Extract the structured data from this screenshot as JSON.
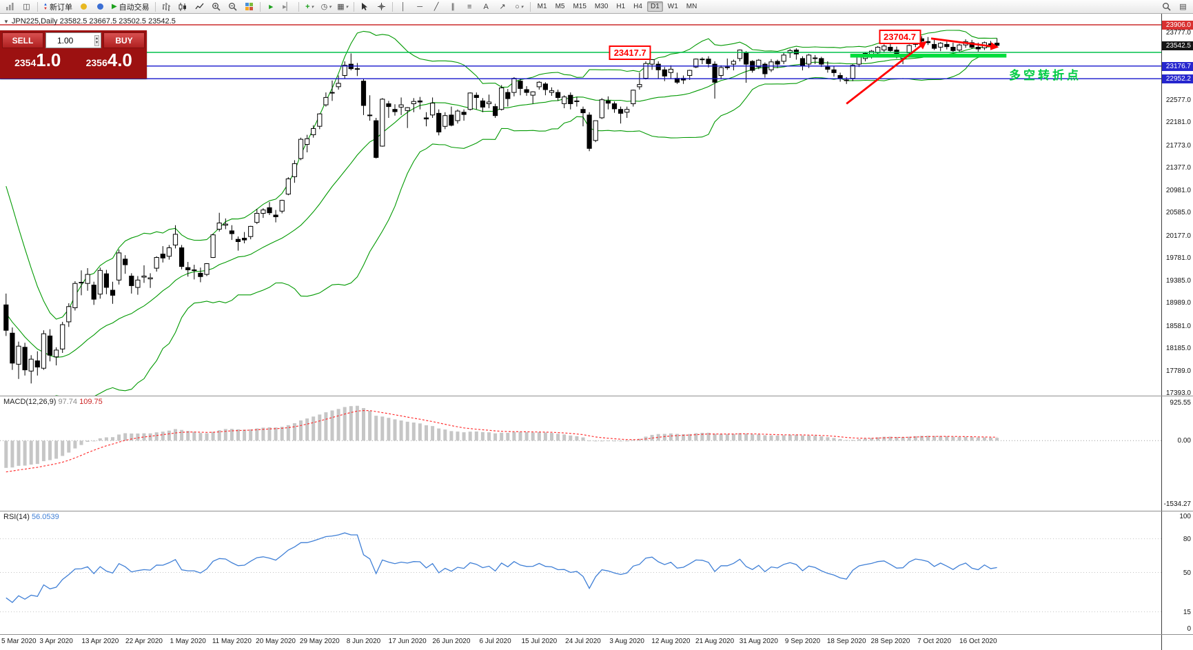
{
  "toolbar": {
    "new_order_label": "新订单",
    "autotrade_label": "自动交易",
    "timeframes": [
      "M1",
      "M5",
      "M15",
      "M30",
      "H1",
      "H4",
      "D1",
      "W1",
      "MN"
    ],
    "active_timeframe": "D1"
  },
  "trade_panel": {
    "sell_label": "SELL",
    "buy_label": "BUY",
    "volume": "1.00",
    "bid": "23541.0",
    "ask": "23564.0"
  },
  "chart": {
    "symbol_line": "JPN225,Daily 23582.5 23667.5 23502.5 23542.5",
    "price_axis": {
      "max": 23906.0,
      "min": 17393.0,
      "labels": [
        {
          "text": "23906.0",
          "v": 23906.0,
          "style": "red"
        },
        {
          "text": "23777.0",
          "v": 23777.0,
          "style": "plain"
        },
        {
          "text": "23542.5",
          "v": 23542.5,
          "style": "current"
        },
        {
          "text": "23176.7",
          "v": 23176.7,
          "style": "blue"
        },
        {
          "text": "22952.2",
          "v": 22952.2,
          "style": "blue"
        },
        {
          "text": "22577.0",
          "v": 22577.0,
          "style": "plain"
        },
        {
          "text": "22181.0",
          "v": 22181.0,
          "style": "plain"
        },
        {
          "text": "21773.0",
          "v": 21773.0,
          "style": "plain"
        },
        {
          "text": "21377.0",
          "v": 21377.0,
          "style": "plain"
        },
        {
          "text": "20981.0",
          "v": 20981.0,
          "style": "plain"
        },
        {
          "text": "20585.0",
          "v": 20585.0,
          "style": "plain"
        },
        {
          "text": "20177.0",
          "v": 20177.0,
          "style": "plain"
        },
        {
          "text": "19781.0",
          "v": 19781.0,
          "style": "plain"
        },
        {
          "text": "19385.0",
          "v": 19385.0,
          "style": "plain"
        },
        {
          "text": "18989.0",
          "v": 18989.0,
          "style": "plain"
        },
        {
          "text": "18581.0",
          "v": 18581.0,
          "style": "plain"
        },
        {
          "text": "18185.0",
          "v": 18185.0,
          "style": "plain"
        },
        {
          "text": "17789.0",
          "v": 17789.0,
          "style": "plain"
        },
        {
          "text": "17393.0",
          "v": 17393.0,
          "style": "plain"
        }
      ]
    },
    "levels": {
      "red_line": 23906.0,
      "green_line": 23417.7,
      "blue_lines": [
        23176.7,
        22952.2
      ],
      "thick_green": {
        "price": 23360,
        "x1_idx": 134.6,
        "x2_idx": 159.5
      }
    },
    "annotations": [
      {
        "text": "23417.7",
        "price": 23417.7,
        "x_idx": 99.5
      },
      {
        "text": "23704.7",
        "price": 23704.7,
        "x_idx": 142.5
      }
    ],
    "arrows": [
      {
        "x1_idx": 134.0,
        "p1": 22510,
        "x2_idx": 146.5,
        "p2": 23590
      },
      {
        "x1_idx": 147.5,
        "p1": 23665,
        "x2_idx": 157.9,
        "p2": 23515
      }
    ],
    "cn_note": {
      "text": "多空转折点",
      "color": "#00cc44"
    },
    "date_labels": [
      "5 Mar 2020",
      "3 Apr 2020",
      "13 Apr 2020",
      "22 Apr 2020",
      "1 May 2020",
      "11 May 2020",
      "20 May 2020",
      "29 May 2020",
      "8 Jun 2020",
      "17 Jun 2020",
      "26 Jun 2020",
      "6 Jul 2020",
      "15 Jul 2020",
      "24 Jul 2020",
      "3 Aug 2020",
      "12 Aug 2020",
      "21 Aug 2020",
      "31 Aug 2020",
      "9 Sep 2020",
      "18 Sep 2020",
      "28 Sep 2020",
      "7 Oct 2020",
      "16 Oct 2020"
    ],
    "label_first_index": 1,
    "label_every_n_candles": 7,
    "prehistory_closes": [
      21200,
      21000,
      20800,
      20500,
      20200,
      19900,
      19600,
      19200,
      18800,
      18400,
      18100,
      17800,
      17600,
      17500,
      17400,
      17600,
      17900,
      18200,
      18400,
      18600
    ],
    "candles": [
      [
        18950,
        19150,
        18400,
        18500
      ],
      [
        18450,
        18550,
        17800,
        17920
      ],
      [
        17900,
        18300,
        17640,
        18220
      ],
      [
        18200,
        18280,
        17700,
        17800
      ],
      [
        17780,
        18060,
        17560,
        17990
      ],
      [
        17960,
        18130,
        17700,
        17850
      ],
      [
        17830,
        18500,
        17800,
        18440
      ],
      [
        18400,
        18520,
        17950,
        18060
      ],
      [
        18030,
        18200,
        17880,
        18150
      ],
      [
        18170,
        18650,
        18100,
        18600
      ],
      [
        18650,
        18980,
        18560,
        18920
      ],
      [
        18900,
        19370,
        18850,
        19330
      ],
      [
        19350,
        19560,
        19120,
        19350
      ],
      [
        19330,
        19600,
        19200,
        19490
      ],
      [
        19300,
        19360,
        18950,
        19050
      ],
      [
        19140,
        19610,
        19060,
        19560
      ],
      [
        19500,
        19570,
        19140,
        19260
      ],
      [
        19210,
        19360,
        18970,
        19120
      ],
      [
        19390,
        19930,
        19310,
        19870
      ],
      [
        19760,
        19830,
        19500,
        19660
      ],
      [
        19460,
        19510,
        19150,
        19290
      ],
      [
        19260,
        19460,
        19130,
        19390
      ],
      [
        19440,
        19650,
        19340,
        19460
      ],
      [
        19410,
        19510,
        19250,
        19430
      ],
      [
        19600,
        19810,
        19540,
        19790
      ],
      [
        19850,
        19990,
        19700,
        19780
      ],
      [
        19810,
        20010,
        19750,
        19960
      ],
      [
        20010,
        20360,
        19950,
        20200
      ],
      [
        19960,
        20010,
        19580,
        19630
      ],
      [
        19610,
        19710,
        19450,
        19570
      ],
      [
        19560,
        19660,
        19400,
        19570
      ],
      [
        19510,
        19610,
        19350,
        19450
      ],
      [
        19490,
        19690,
        19460,
        19680
      ],
      [
        19790,
        20210,
        19780,
        20190
      ],
      [
        20290,
        20580,
        20250,
        20400
      ],
      [
        20360,
        20480,
        20290,
        20380
      ],
      [
        20260,
        20360,
        20100,
        20210
      ],
      [
        20110,
        20160,
        19910,
        20070
      ],
      [
        20130,
        20240,
        20040,
        20100
      ],
      [
        20160,
        20350,
        20110,
        20340
      ],
      [
        20410,
        20650,
        20380,
        20570
      ],
      [
        20570,
        20660,
        20490,
        20630
      ],
      [
        20670,
        20770,
        20540,
        20580
      ],
      [
        20540,
        20630,
        20410,
        20510
      ],
      [
        20610,
        20810,
        20570,
        20800
      ],
      [
        20910,
        21210,
        20890,
        21180
      ],
      [
        21220,
        21510,
        21110,
        21450
      ],
      [
        21540,
        21910,
        21510,
        21880
      ],
      [
        21790,
        21960,
        21650,
        21890
      ],
      [
        21960,
        22130,
        21910,
        22070
      ],
      [
        22110,
        22340,
        22060,
        22330
      ],
      [
        22490,
        22710,
        22460,
        22620
      ],
      [
        22710,
        22920,
        22560,
        22710
      ],
      [
        22810,
        23010,
        22760,
        22870
      ],
      [
        23010,
        23260,
        22960,
        23190
      ],
      [
        23210,
        23400,
        23100,
        23130
      ],
      [
        23130,
        23230,
        23000,
        23130
      ],
      [
        22910,
        22960,
        22310,
        22480
      ],
      [
        22310,
        22660,
        22210,
        22310
      ],
      [
        22210,
        22260,
        21540,
        21560
      ],
      [
        21760,
        22610,
        21750,
        22590
      ],
      [
        22510,
        22560,
        22260,
        22460
      ],
      [
        22410,
        22500,
        22300,
        22370
      ],
      [
        22450,
        22620,
        22310,
        22490
      ],
      [
        22390,
        22450,
        22080,
        22440
      ],
      [
        22510,
        22610,
        22360,
        22550
      ],
      [
        22560,
        22630,
        22410,
        22540
      ],
      [
        22260,
        22360,
        22110,
        22240
      ],
      [
        22310,
        22620,
        22260,
        22520
      ],
      [
        22340,
        22410,
        21950,
        22010
      ],
      [
        22110,
        22360,
        22060,
        22300
      ],
      [
        22310,
        22460,
        22110,
        22130
      ],
      [
        22210,
        22410,
        22160,
        22380
      ],
      [
        22360,
        22410,
        22210,
        22320
      ],
      [
        22410,
        22710,
        22390,
        22700
      ],
      [
        22660,
        22710,
        22410,
        22620
      ],
      [
        22560,
        22610,
        22360,
        22450
      ],
      [
        22510,
        22670,
        22430,
        22540
      ],
      [
        22460,
        22510,
        22260,
        22300
      ],
      [
        22410,
        22840,
        22390,
        22790
      ],
      [
        22710,
        22770,
        22460,
        22600
      ],
      [
        22710,
        22980,
        22640,
        22960
      ],
      [
        22910,
        22950,
        22660,
        22780
      ],
      [
        22760,
        22820,
        22650,
        22710
      ],
      [
        22660,
        22730,
        22510,
        22720
      ],
      [
        22810,
        22910,
        22760,
        22890
      ],
      [
        22860,
        22890,
        22660,
        22760
      ],
      [
        22710,
        22800,
        22650,
        22740
      ],
      [
        22710,
        22760,
        22560,
        22620
      ],
      [
        22510,
        22660,
        22430,
        22630
      ],
      [
        22660,
        22710,
        22410,
        22510
      ],
      [
        22560,
        22630,
        22460,
        22550
      ],
      [
        22410,
        22460,
        22110,
        22350
      ],
      [
        22310,
        22360,
        21670,
        21720
      ],
      [
        21860,
        22210,
        21830,
        22210
      ],
      [
        22260,
        22610,
        22240,
        22580
      ],
      [
        22560,
        22640,
        22410,
        22520
      ],
      [
        22510,
        22550,
        22350,
        22420
      ],
      [
        22410,
        22460,
        22160,
        22340
      ],
      [
        22360,
        22460,
        22260,
        22410
      ],
      [
        22510,
        22760,
        22460,
        22750
      ],
      [
        22810,
        23060,
        22760,
        22850
      ],
      [
        22960,
        23260,
        22940,
        23220
      ],
      [
        23210,
        23300,
        23110,
        23290
      ],
      [
        23210,
        23260,
        22960,
        23110
      ],
      [
        23110,
        23160,
        22910,
        23000
      ],
      [
        23060,
        23190,
        22960,
        23120
      ],
      [
        22960,
        23060,
        22860,
        22890
      ],
      [
        22960,
        23010,
        22860,
        22930
      ],
      [
        23010,
        23110,
        22930,
        23100
      ],
      [
        23160,
        23310,
        23140,
        23300
      ],
      [
        23300,
        23330,
        23210,
        23290
      ],
      [
        23300,
        23350,
        23150,
        23220
      ],
      [
        23210,
        23260,
        22600,
        22890
      ],
      [
        23010,
        23190,
        22940,
        23150
      ],
      [
        23160,
        23310,
        23110,
        23150
      ],
      [
        23210,
        23290,
        23100,
        23260
      ],
      [
        23310,
        23470,
        23260,
        23460
      ],
      [
        23410,
        23440,
        22880,
        23210
      ],
      [
        23260,
        23280,
        23060,
        23100
      ],
      [
        23160,
        23300,
        23120,
        23280
      ],
      [
        23210,
        23240,
        22970,
        23040
      ],
      [
        23110,
        23300,
        23070,
        23250
      ],
      [
        23260,
        23290,
        23140,
        23210
      ],
      [
        23260,
        23410,
        23210,
        23370
      ],
      [
        23410,
        23480,
        23320,
        23450
      ],
      [
        23460,
        23490,
        23290,
        23390
      ],
      [
        23310,
        23350,
        23100,
        23180
      ],
      [
        23210,
        23390,
        23140,
        23370
      ],
      [
        23310,
        23370,
        23210,
        23320
      ],
      [
        23310,
        23340,
        23160,
        23210
      ],
      [
        23160,
        23260,
        23060,
        23120
      ],
      [
        23110,
        23180,
        22990,
        23060
      ],
      [
        23010,
        23060,
        22900,
        22960
      ],
      [
        22930,
        22980,
        22860,
        22920
      ],
      [
        22960,
        23210,
        22910,
        23190
      ],
      [
        23210,
        23380,
        23160,
        23350
      ],
      [
        23310,
        23420,
        23260,
        23400
      ],
      [
        23360,
        23460,
        23310,
        23440
      ],
      [
        23410,
        23530,
        23380,
        23510
      ],
      [
        23460,
        23560,
        23410,
        23530
      ],
      [
        23510,
        23580,
        23430,
        23450
      ],
      [
        23460,
        23520,
        23310,
        23360
      ],
      [
        23310,
        23390,
        23210,
        23370
      ],
      [
        23410,
        23560,
        23390,
        23540
      ],
      [
        23560,
        23660,
        23510,
        23640
      ],
      [
        23660,
        23705,
        23560,
        23620
      ],
      [
        23610,
        23690,
        23550,
        23590
      ],
      [
        23560,
        23640,
        23460,
        23490
      ],
      [
        23510,
        23600,
        23440,
        23580
      ],
      [
        23560,
        23620,
        23470,
        23520
      ],
      [
        23510,
        23590,
        23410,
        23450
      ],
      [
        23460,
        23570,
        23420,
        23550
      ],
      [
        23550,
        23650,
        23500,
        23610
      ],
      [
        23590,
        23640,
        23480,
        23510
      ],
      [
        23510,
        23590,
        23430,
        23480
      ],
      [
        23500,
        23610,
        23460,
        23590
      ],
      [
        23570,
        23620,
        23480,
        23520
      ],
      [
        23582.5,
        23667.5,
        23502.5,
        23542.5
      ]
    ]
  },
  "macd": {
    "title": "MACD(12,26,9)",
    "value_main": "97.74",
    "value_signal": "109.75",
    "axis": [
      {
        "text": "925.55",
        "v": 925.55
      },
      {
        "text": "0.00",
        "v": 0
      },
      {
        "text": "-1534.27",
        "v": -1534.27
      }
    ]
  },
  "rsi": {
    "title": "RSI(14)",
    "value": "56.0539",
    "axis": [
      {
        "text": "100",
        "v": 100
      },
      {
        "text": "80",
        "v": 80
      },
      {
        "text": "50",
        "v": 50
      },
      {
        "text": "15",
        "v": 15
      },
      {
        "text": "0",
        "v": 0
      }
    ],
    "levels": [
      80,
      50,
      15
    ]
  },
  "colors": {
    "bb": "#009900",
    "bull": "#ffffff",
    "bear": "#000000",
    "wick": "#000000",
    "red_level": "#cc2a2a",
    "green_level": "#00c04b",
    "thick_green": "#00dd3c",
    "blue_level": "#1414cc",
    "arrow": "#ff0000",
    "macd_hist": "#c6c6c6",
    "macd_signal": "#ff3030",
    "rsi_line": "#3f7fd6",
    "annotation_red": "#ff0000"
  }
}
